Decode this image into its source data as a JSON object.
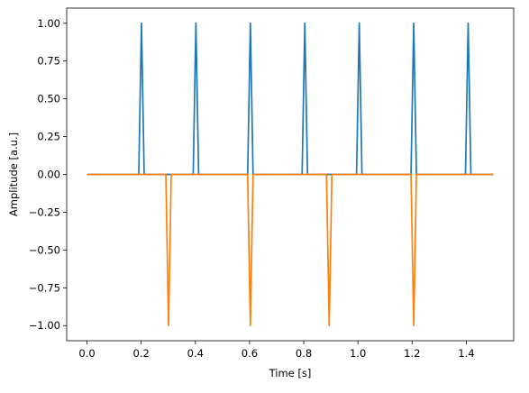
{
  "chart_data": {
    "type": "line",
    "xlabel": "Time [s]",
    "ylabel": "Amplitude [a.u.]",
    "xlim": [
      -0.075,
      1.575
    ],
    "ylim": [
      -1.1,
      1.1
    ],
    "xticks": [
      0.0,
      0.2,
      0.4,
      0.6,
      0.8,
      1.0,
      1.2,
      1.4
    ],
    "xtick_labels": [
      "0.0",
      "0.2",
      "0.4",
      "0.6",
      "0.8",
      "1.0",
      "1.2",
      "1.4"
    ],
    "yticks": [
      1.0,
      0.75,
      0.5,
      0.25,
      0.0,
      -0.25,
      -0.5,
      -0.75,
      -1.0
    ],
    "ytick_labels": [
      "1.00",
      "0.75",
      "0.50",
      "0.25",
      "0.00",
      "−0.25",
      "−0.50",
      "−0.75",
      "−1.00"
    ],
    "grid": false,
    "legend": "none",
    "series": [
      {
        "color": "#1f77b4",
        "x": [
          0.0,
          0.191,
          0.201,
          0.211,
          0.392,
          0.402,
          0.412,
          0.593,
          0.603,
          0.613,
          0.794,
          0.804,
          0.814,
          0.995,
          1.005,
          1.015,
          1.196,
          1.206,
          1.216,
          1.397,
          1.407,
          1.417,
          1.5
        ],
        "y": [
          0,
          0,
          1,
          0,
          0,
          1,
          0,
          0,
          1,
          0,
          0,
          1,
          0,
          0,
          1,
          0,
          0,
          1,
          0,
          0,
          1,
          0,
          0
        ]
      },
      {
        "color": "#ff7f0e",
        "x": [
          0.0,
          0.291,
          0.301,
          0.311,
          0.593,
          0.603,
          0.613,
          0.884,
          0.894,
          0.904,
          1.196,
          1.206,
          1.216,
          1.5
        ],
        "y": [
          0,
          0,
          -1,
          0,
          0,
          -1,
          0,
          0,
          -1,
          0,
          0,
          -1,
          0,
          0
        ]
      }
    ]
  }
}
